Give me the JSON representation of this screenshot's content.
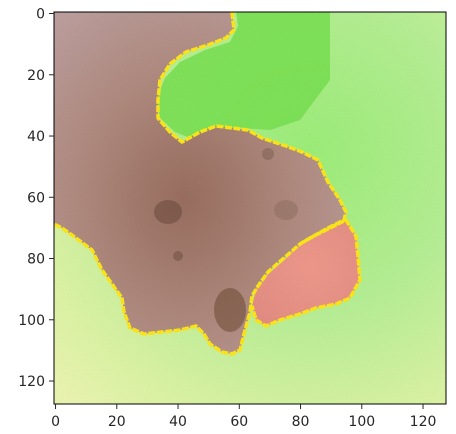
{
  "image_axes": {
    "x_ticks": [
      0,
      20,
      40,
      60,
      80,
      100,
      120
    ],
    "y_ticks": [
      0,
      20,
      40,
      60,
      80,
      100,
      120
    ],
    "x_range": [
      0,
      128
    ],
    "y_range": [
      0,
      128
    ],
    "y_inverted": true,
    "frame_color": "#000000",
    "tick_color": "#262626"
  },
  "image_content": {
    "description_colors": {
      "lesion_brown": "#a8897f",
      "lesion_dark": "#7a5a48",
      "lesion_pink": "#e9968b",
      "background_green": "#a6f08a",
      "background_bright_green": "#72e34d",
      "background_yellow": "#e8f7a4",
      "boundary": "#ffe81a"
    }
  }
}
